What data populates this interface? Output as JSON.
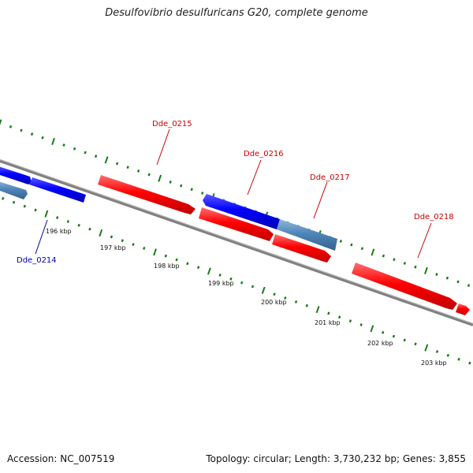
{
  "title": "Desulfovibrio desulfuricans G20, complete genome",
  "footer": {
    "accession": "Accession: NC_007519",
    "topology": "Topology: circular; Length: 3,730,232 bp; Genes: 3,855"
  },
  "colors": {
    "forward_gene": "#ff0000",
    "reverse_gene": "#0000ff",
    "reverse_gene_light": "#4f86b9",
    "backbone": "#808080",
    "tick": "#1a7a1a",
    "label_forward": "#cc0000",
    "label_reverse": "#0000aa"
  },
  "scale_labels": [
    "196 kbp",
    "197 kbp",
    "198 kbp",
    "199 kbp",
    "200 kbp",
    "201 kbp",
    "202 kbp",
    "203 kbp"
  ],
  "gene_labels": [
    {
      "id": "Dde_0214",
      "strand": "reverse"
    },
    {
      "id": "Dde_0215",
      "strand": "forward"
    },
    {
      "id": "Dde_0216",
      "strand": "reverse"
    },
    {
      "id": "Dde_0217",
      "strand": "reverse"
    },
    {
      "id": "Dde_0218",
      "strand": "forward"
    }
  ]
}
